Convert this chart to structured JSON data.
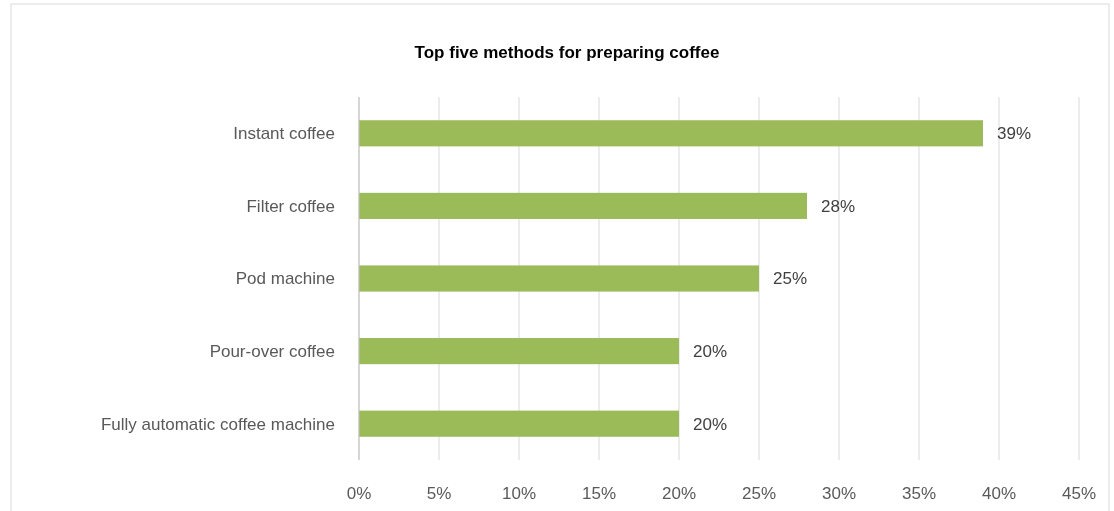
{
  "chart_data": {
    "type": "bar",
    "orientation": "horizontal",
    "title": "Top five methods for preparing coffee",
    "categories": [
      "Instant coffee",
      "Filter coffee",
      "Pod machine",
      "Pour-over coffee",
      "Fully automatic coffee machine"
    ],
    "values": [
      39,
      28,
      25,
      20,
      20
    ],
    "color": "#9bbb59",
    "value_labels": [
      "39%",
      "28%",
      "25%",
      "20%",
      "20%"
    ],
    "xlim": [
      0,
      45
    ],
    "xticks": [
      {
        "value": 0,
        "label": "0%"
      },
      {
        "value": 5,
        "label": "5%"
      },
      {
        "value": 10,
        "label": "10%"
      },
      {
        "value": 15,
        "label": "15%"
      },
      {
        "value": 20,
        "label": "20%"
      },
      {
        "value": 25,
        "label": "25%"
      },
      {
        "value": 30,
        "label": "30%"
      },
      {
        "value": 35,
        "label": "35%"
      },
      {
        "value": 40,
        "label": "40%"
      },
      {
        "value": 45,
        "label": "45%"
      }
    ],
    "grid": "x"
  }
}
